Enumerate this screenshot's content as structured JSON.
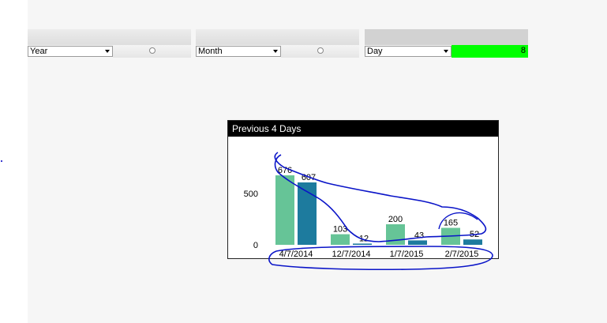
{
  "filters": {
    "year": {
      "label": "Year",
      "value": ""
    },
    "month": {
      "label": "Month",
      "value": ""
    },
    "day": {
      "label": "Day",
      "value": "8"
    }
  },
  "chart": {
    "title": "Previous 4 Days",
    "y_ticks": [
      "500",
      "0"
    ]
  },
  "chart_data": {
    "type": "bar",
    "title": "Previous 4 Days",
    "categories": [
      "4/7/2014",
      "12/7/2014",
      "1/7/2015",
      "2/7/2015"
    ],
    "series": [
      {
        "values": [
          676,
          103,
          200,
          165
        ],
        "color": "#66c497"
      },
      {
        "values": [
          607,
          12,
          43,
          52
        ],
        "color": "#1d7b9e"
      }
    ],
    "ylim": [
      0,
      800
    ],
    "y_ticks": [
      0,
      500
    ],
    "grid": false,
    "legend": "none"
  },
  "colors": {
    "green_bar": "#66c497",
    "teal_bar": "#1d7b9e",
    "selected_value": "#00ff00",
    "annotation": "#0a14c8"
  }
}
